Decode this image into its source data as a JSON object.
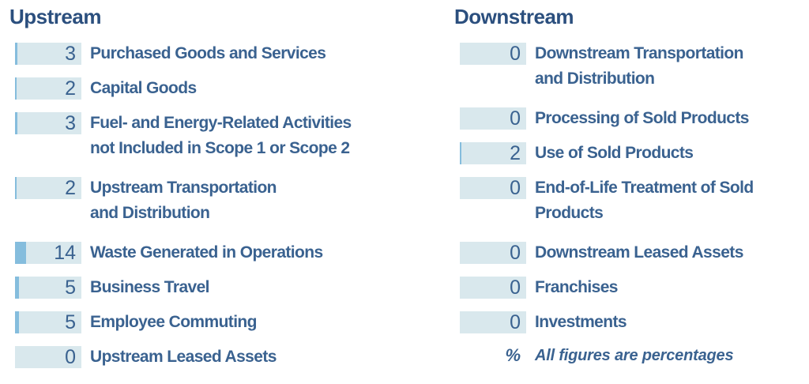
{
  "colors": {
    "header": "#2b4f7e",
    "label": "#3a6290",
    "bar_track": "#d9e8ed",
    "bar_fill": "#85bddd",
    "background": "#ffffff"
  },
  "chart_data": {
    "type": "bar",
    "orientation": "horizontal",
    "unit": "percent",
    "footnote_symbol": "%",
    "footnote": "All figures are percentages",
    "groups": [
      {
        "title": "Upstream",
        "items": [
          {
            "value": 3,
            "label": "Purchased Goods and Services",
            "label_lines": [
              "Purchased Goods and Services"
            ]
          },
          {
            "value": 2,
            "label": "Capital Goods",
            "label_lines": [
              "Capital Goods"
            ]
          },
          {
            "value": 3,
            "label": "Fuel- and Energy-Related Activities not Included in Scope 1 or Scope 2",
            "label_lines": [
              "Fuel- and Energy-Related Activities",
              "not Included in Scope 1 or Scope 2"
            ]
          },
          {
            "value": 2,
            "label": "Upstream Transportation and Distribution",
            "label_lines": [
              "Upstream Transportation",
              "and Distribution"
            ]
          },
          {
            "value": 14,
            "label": "Waste Generated in Operations",
            "label_lines": [
              "Waste Generated in Operations"
            ]
          },
          {
            "value": 5,
            "label": "Business Travel",
            "label_lines": [
              "Business Travel"
            ]
          },
          {
            "value": 5,
            "label": "Employee Commuting",
            "label_lines": [
              "Employee Commuting"
            ]
          },
          {
            "value": 0,
            "label": "Upstream Leased Assets",
            "label_lines": [
              "Upstream Leased Assets"
            ]
          }
        ]
      },
      {
        "title": "Downstream",
        "items": [
          {
            "value": 0,
            "label": "Downstream Transportation and Distribution",
            "label_lines": [
              "Downstream Transportation",
              "and Distribution"
            ]
          },
          {
            "value": 0,
            "label": "Processing of Sold Products",
            "label_lines": [
              "Processing of Sold Products"
            ]
          },
          {
            "value": 2,
            "label": "Use of Sold Products",
            "label_lines": [
              "Use of Sold Products"
            ]
          },
          {
            "value": 0,
            "label": "End-of-Life Treatment of Sold Products",
            "label_lines": [
              "End-of-Life Treatment of Sold",
              "Products"
            ]
          },
          {
            "value": 0,
            "label": "Downstream Leased Assets",
            "label_lines": [
              "Downstream Leased Assets"
            ]
          },
          {
            "value": 0,
            "label": "Franchises",
            "label_lines": [
              "Franchises"
            ]
          },
          {
            "value": 0,
            "label": "Investments",
            "label_lines": [
              "Investments"
            ]
          }
        ]
      }
    ]
  }
}
